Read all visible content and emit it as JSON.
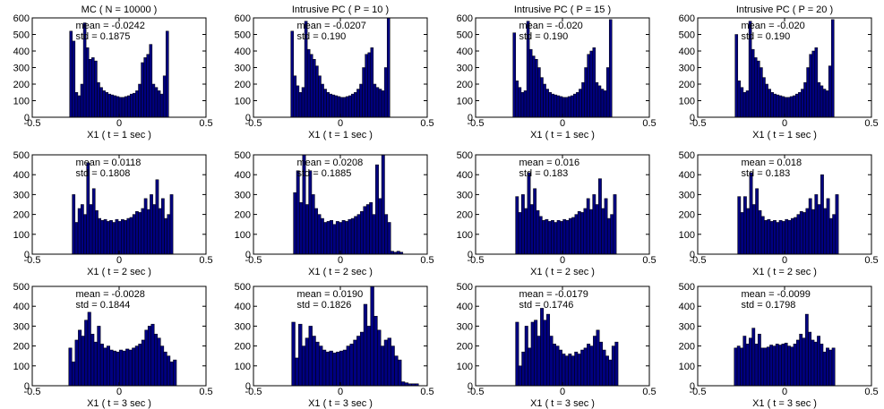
{
  "figure": {
    "bar_fill": "#000080",
    "bar_edge": "#000000",
    "background": "#ffffff"
  },
  "chart_data": [
    {
      "type": "bar",
      "title": "MC ( N = 10000 )",
      "xlabel": "X1 ( t = 1 sec )",
      "xlim": [
        -0.5,
        0.5
      ],
      "ylim": [
        0,
        600
      ],
      "xticks": [
        "-0.5",
        "0",
        "0.5"
      ],
      "yticks": [
        "0",
        "100",
        "200",
        "300",
        "400",
        "500",
        "600"
      ],
      "annotations": [
        "mean = -0.0242",
        "std = 0.1875"
      ],
      "bin_range": [
        -0.285,
        0.285
      ],
      "values": [
        520,
        460,
        150,
        130,
        200,
        570,
        420,
        350,
        360,
        340,
        210,
        180,
        160,
        150,
        140,
        135,
        130,
        125,
        120,
        120,
        125,
        130,
        140,
        145,
        160,
        200,
        330,
        360,
        380,
        440,
        200,
        180,
        160,
        140,
        250,
        520
      ]
    },
    {
      "type": "bar",
      "title": "Intrusive PC ( P = 10 )",
      "xlabel": "X1 ( t = 1 sec )",
      "xlim": [
        -0.5,
        0.5
      ],
      "ylim": [
        0,
        600
      ],
      "xticks": [
        "-0.5",
        "0",
        "0.5"
      ],
      "yticks": [
        "0",
        "100",
        "200",
        "300",
        "400",
        "500",
        "600"
      ],
      "annotations": [
        "mean = -0.0207",
        "std = 0.190"
      ],
      "bin_range": [
        -0.285,
        0.285
      ],
      "values": [
        520,
        250,
        190,
        150,
        180,
        580,
        410,
        380,
        350,
        310,
        250,
        200,
        170,
        150,
        140,
        135,
        130,
        125,
        120,
        120,
        125,
        130,
        140,
        150,
        170,
        200,
        300,
        380,
        390,
        420,
        200,
        180,
        170,
        160,
        300,
        600
      ]
    },
    {
      "type": "bar",
      "title": "Intrusive PC ( P = 15 )",
      "xlabel": "X1 ( t = 1 sec )",
      "xlim": [
        -0.5,
        0.5
      ],
      "ylim": [
        0,
        600
      ],
      "xticks": [
        "-0.5",
        "0",
        "0.5"
      ],
      "yticks": [
        "0",
        "100",
        "200",
        "300",
        "400",
        "500",
        "600"
      ],
      "annotations": [
        "mean = -0.020",
        "std = 0.190"
      ],
      "bin_range": [
        -0.285,
        0.285
      ],
      "values": [
        510,
        220,
        180,
        150,
        160,
        580,
        410,
        370,
        350,
        300,
        240,
        200,
        170,
        150,
        140,
        135,
        130,
        125,
        120,
        120,
        125,
        130,
        140,
        150,
        170,
        210,
        300,
        380,
        400,
        420,
        210,
        190,
        170,
        160,
        300,
        590
      ]
    },
    {
      "type": "bar",
      "title": "Intrusive PC ( P = 20 )",
      "xlabel": "X1 ( t = 1 sec )",
      "xlim": [
        -0.5,
        0.5
      ],
      "ylim": [
        0,
        600
      ],
      "xticks": [
        "-0.5",
        "0",
        "0.5"
      ],
      "yticks": [
        "0",
        "100",
        "200",
        "300",
        "400",
        "500",
        "600"
      ],
      "annotations": [
        "mean = -0.020",
        "std = 0.190"
      ],
      "bin_range": [
        -0.285,
        0.285
      ],
      "values": [
        500,
        220,
        180,
        150,
        160,
        580,
        410,
        360,
        340,
        300,
        240,
        200,
        170,
        150,
        140,
        135,
        130,
        125,
        120,
        120,
        125,
        130,
        140,
        150,
        170,
        210,
        300,
        380,
        400,
        420,
        210,
        190,
        170,
        160,
        310,
        590
      ]
    },
    {
      "type": "bar",
      "title": "",
      "xlabel": "X1 ( t = 2 sec )",
      "xlim": [
        -0.5,
        0.5
      ],
      "ylim": [
        0,
        500
      ],
      "xticks": [
        "-0.5",
        "0",
        "0.5"
      ],
      "yticks": [
        "0",
        "100",
        "200",
        "300",
        "400",
        "500"
      ],
      "annotations": [
        "mean = 0.0118",
        "std = 0.1808"
      ],
      "bin_range": [
        -0.27,
        0.31
      ],
      "values": [
        300,
        160,
        230,
        250,
        200,
        460,
        250,
        330,
        220,
        180,
        170,
        175,
        165,
        170,
        160,
        175,
        165,
        175,
        170,
        180,
        185,
        200,
        215,
        210,
        230,
        280,
        225,
        300,
        250,
        375,
        230,
        280,
        180,
        200,
        300
      ]
    },
    {
      "type": "bar",
      "title": "",
      "xlabel": "X1 ( t = 2 sec )",
      "xlim": [
        -0.5,
        0.5
      ],
      "ylim": [
        0,
        500
      ],
      "xticks": [
        "-0.5",
        "0",
        "0.5"
      ],
      "yticks": [
        "0",
        "100",
        "200",
        "300",
        "400",
        "500"
      ],
      "annotations": [
        "mean = 0.0208",
        "std = 0.1885"
      ],
      "bin_range": [
        -0.27,
        0.36
      ],
      "values": [
        310,
        420,
        260,
        500,
        250,
        420,
        300,
        230,
        200,
        180,
        160,
        165,
        170,
        150,
        165,
        160,
        170,
        165,
        175,
        180,
        190,
        200,
        215,
        240,
        250,
        260,
        200,
        450,
        280,
        500,
        200,
        160,
        15,
        10,
        15,
        10
      ]
    },
    {
      "type": "bar",
      "title": "",
      "xlabel": "X1 ( t = 2 sec )",
      "xlim": [
        -0.5,
        0.5
      ],
      "ylim": [
        0,
        500
      ],
      "xticks": [
        "-0.5",
        "0",
        "0.5"
      ],
      "yticks": [
        "0",
        "100",
        "200",
        "300",
        "400",
        "500"
      ],
      "annotations": [
        "mean = 0.016",
        "std = 0.183"
      ],
      "bin_range": [
        -0.27,
        0.31
      ],
      "values": [
        290,
        210,
        300,
        230,
        410,
        250,
        330,
        220,
        190,
        170,
        175,
        165,
        170,
        160,
        170,
        165,
        175,
        170,
        180,
        185,
        200,
        215,
        210,
        230,
        280,
        225,
        300,
        250,
        380,
        230,
        280,
        180,
        200,
        300
      ]
    },
    {
      "type": "bar",
      "title": "",
      "xlabel": "X1 ( t = 2 sec )",
      "xlim": [
        -0.5,
        0.5
      ],
      "ylim": [
        0,
        500
      ],
      "xticks": [
        "-0.5",
        "0",
        "0.5"
      ],
      "yticks": [
        "0",
        "100",
        "200",
        "300",
        "400",
        "500"
      ],
      "annotations": [
        "mean = 0.018",
        "std = 0.183"
      ],
      "bin_range": [
        -0.27,
        0.31
      ],
      "values": [
        290,
        210,
        290,
        230,
        410,
        250,
        330,
        220,
        190,
        170,
        175,
        165,
        170,
        160,
        170,
        165,
        175,
        170,
        180,
        185,
        200,
        215,
        210,
        230,
        280,
        225,
        300,
        250,
        400,
        230,
        280,
        180,
        200,
        300
      ]
    },
    {
      "type": "bar",
      "title": "",
      "xlabel": "X1 ( t = 3 sec )",
      "xlim": [
        -0.5,
        0.5
      ],
      "ylim": [
        0,
        500
      ],
      "xticks": [
        "-0.5",
        "0",
        "0.5"
      ],
      "yticks": [
        "0",
        "100",
        "200",
        "300",
        "400",
        "500"
      ],
      "annotations": [
        "mean = -0.0028",
        "std = 0.1844"
      ],
      "bin_range": [
        -0.29,
        0.33
      ],
      "values": [
        190,
        120,
        230,
        280,
        250,
        330,
        370,
        260,
        220,
        300,
        210,
        190,
        200,
        180,
        175,
        170,
        180,
        175,
        185,
        180,
        190,
        200,
        210,
        230,
        280,
        300,
        310,
        260,
        240,
        200,
        170,
        150,
        120,
        130
      ]
    },
    {
      "type": "bar",
      "title": "",
      "xlabel": "X1 ( t = 3 sec )",
      "xlim": [
        -0.5,
        0.5
      ],
      "ylim": [
        0,
        500
      ],
      "xticks": [
        "-0.5",
        "0",
        "0.5"
      ],
      "yticks": [
        "0",
        "100",
        "200",
        "300",
        "400",
        "500"
      ],
      "annotations": [
        "mean = 0.0190",
        "std = 0.1826"
      ],
      "bin_range": [
        -0.28,
        0.45
      ],
      "values": [
        320,
        140,
        310,
        200,
        240,
        300,
        250,
        220,
        200,
        180,
        170,
        175,
        165,
        170,
        175,
        180,
        200,
        210,
        230,
        250,
        270,
        410,
        300,
        500,
        350,
        280,
        200,
        230,
        240,
        200,
        150,
        130,
        20,
        15,
        10,
        10,
        10
      ]
    },
    {
      "type": "bar",
      "title": "",
      "xlabel": "X1 ( t = 3 sec )",
      "xlim": [
        -0.5,
        0.5
      ],
      "ylim": [
        0,
        500
      ],
      "xticks": [
        "-0.5",
        "0",
        "0.5"
      ],
      "yticks": [
        "0",
        "100",
        "200",
        "300",
        "400",
        "500"
      ],
      "annotations": [
        "mean = -0.0179",
        "std = 0.1746"
      ],
      "bin_range": [
        -0.27,
        0.32
      ],
      "values": [
        320,
        100,
        170,
        300,
        190,
        320,
        330,
        250,
        390,
        330,
        360,
        250,
        210,
        200,
        180,
        160,
        150,
        160,
        150,
        170,
        160,
        180,
        190,
        210,
        200,
        250,
        280,
        220,
        180,
        150,
        130,
        200,
        220
      ]
    },
    {
      "type": "bar",
      "title": "",
      "xlabel": "X1 ( t = 3 sec )",
      "xlim": [
        -0.5,
        0.5
      ],
      "ylim": [
        0,
        500
      ],
      "xticks": [
        "-0.5",
        "0",
        "0.5"
      ],
      "yticks": [
        "0",
        "100",
        "200",
        "300",
        "400",
        "500"
      ],
      "annotations": [
        "mean = -0.0099",
        "std = 0.1798"
      ],
      "bin_range": [
        -0.29,
        0.29
      ],
      "values": [
        190,
        200,
        190,
        250,
        210,
        240,
        290,
        210,
        260,
        190,
        190,
        195,
        205,
        200,
        210,
        205,
        210,
        215,
        200,
        195,
        210,
        230,
        260,
        240,
        360,
        270,
        230,
        220,
        250,
        210,
        170,
        190,
        180,
        190
      ]
    }
  ]
}
